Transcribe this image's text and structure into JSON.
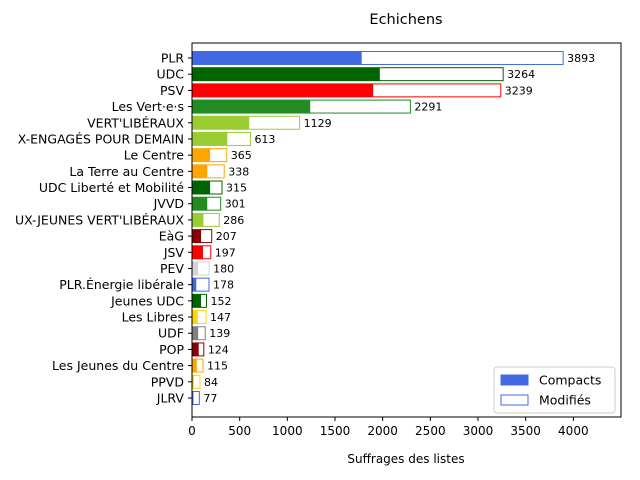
{
  "chart_data": {
    "type": "bar",
    "orientation": "horizontal",
    "stacked_overlay": true,
    "title": "Echichens",
    "xlabel": "Suffrages des listes",
    "ylabel": "",
    "xlim": [
      0,
      4500
    ],
    "xticks": [
      0,
      500,
      1000,
      1500,
      2000,
      2500,
      3000,
      3500,
      4000
    ],
    "grid": false,
    "legend_position": "lower-right",
    "legend": [
      {
        "label": "Compacts",
        "style": "filled",
        "color": "#4169e1"
      },
      {
        "label": "Modifiés",
        "style": "outline",
        "color": "#4169e1"
      }
    ],
    "categories": [
      {
        "name": "PLR",
        "compact": 1780,
        "total": 3893,
        "color": "#4169e1"
      },
      {
        "name": "UDC",
        "compact": 1970,
        "total": 3264,
        "color": "#006400"
      },
      {
        "name": "PSV",
        "compact": 1900,
        "total": 3239,
        "color": "#ff0000"
      },
      {
        "name": "Les Vert·e·s",
        "compact": 1240,
        "total": 2291,
        "color": "#228b22"
      },
      {
        "name": "VERT'LIBÉRAUX",
        "compact": 600,
        "total": 1129,
        "color": "#9acd32"
      },
      {
        "name": "X-ENGAGÉS POUR DEMAIN",
        "compact": 370,
        "total": 613,
        "color": "#9acd32"
      },
      {
        "name": "Le Centre",
        "compact": 190,
        "total": 365,
        "color": "#ffa500"
      },
      {
        "name": "La Terre au Centre",
        "compact": 160,
        "total": 338,
        "color": "#ffa500"
      },
      {
        "name": "UDC Liberté et Mobilité",
        "compact": 190,
        "total": 315,
        "color": "#006400"
      },
      {
        "name": "JVVD",
        "compact": 160,
        "total": 301,
        "color": "#228b22"
      },
      {
        "name": "UX-JEUNES VERT'LIBÉRAUX",
        "compact": 120,
        "total": 286,
        "color": "#9acd32"
      },
      {
        "name": "EàG",
        "compact": 95,
        "total": 207,
        "color": "#8b0000"
      },
      {
        "name": "JSV",
        "compact": 115,
        "total": 197,
        "color": "#ff0000"
      },
      {
        "name": "PEV",
        "compact": 65,
        "total": 180,
        "color": "#d3d3d3"
      },
      {
        "name": "PLR.Énergie libérale",
        "compact": 45,
        "total": 178,
        "color": "#4169e1"
      },
      {
        "name": "Jeunes UDC",
        "compact": 95,
        "total": 152,
        "color": "#006400"
      },
      {
        "name": "Les Libres",
        "compact": 60,
        "total": 147,
        "color": "#ffd700"
      },
      {
        "name": "UDF",
        "compact": 65,
        "total": 139,
        "color": "#808080"
      },
      {
        "name": "POP",
        "compact": 70,
        "total": 124,
        "color": "#8b0000"
      },
      {
        "name": "Les Jeunes du Centre",
        "compact": 50,
        "total": 115,
        "color": "#ffa500"
      },
      {
        "name": "PPVD",
        "compact": 20,
        "total": 84,
        "color": "#ffd700"
      },
      {
        "name": "JLRV",
        "compact": 15,
        "total": 77,
        "color": "#4169e1"
      }
    ]
  }
}
